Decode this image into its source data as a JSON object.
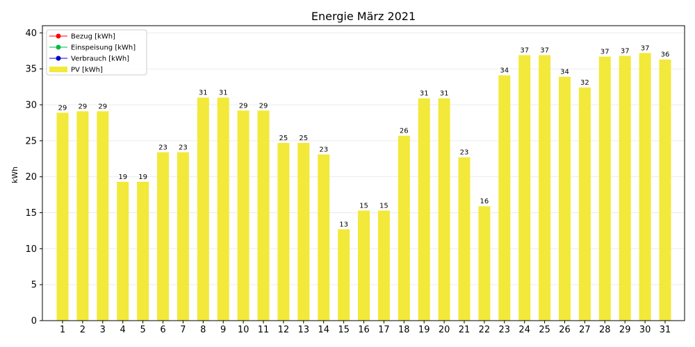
{
  "chart_data": {
    "type": "bar",
    "title": "Energie März 2021",
    "xlabel": "",
    "ylabel": "kWh",
    "categories": [
      "1",
      "2",
      "3",
      "4",
      "5",
      "6",
      "7",
      "8",
      "9",
      "10",
      "11",
      "12",
      "13",
      "14",
      "15",
      "16",
      "17",
      "18",
      "19",
      "20",
      "21",
      "22",
      "23",
      "24",
      "25",
      "26",
      "27",
      "28",
      "29",
      "30",
      "31"
    ],
    "series": [
      {
        "name": "PV [kWh]",
        "color": "#f2e93a",
        "values": [
          28.9,
          29.1,
          29.1,
          19.3,
          19.3,
          23.4,
          23.4,
          31.0,
          31.0,
          29.2,
          29.2,
          24.7,
          24.7,
          23.1,
          12.7,
          15.3,
          15.3,
          25.7,
          30.9,
          30.9,
          22.7,
          15.9,
          34.1,
          36.9,
          36.9,
          33.9,
          32.4,
          36.7,
          36.8,
          37.2,
          36.3
        ]
      }
    ],
    "data_labels": [
      "29",
      "29",
      "29",
      "19",
      "19",
      "23",
      "23",
      "31",
      "31",
      "29",
      "29",
      "25",
      "25",
      "23",
      "13",
      "15",
      "15",
      "26",
      "31",
      "31",
      "23",
      "16",
      "34",
      "37",
      "37",
      "34",
      "32",
      "37",
      "37",
      "37",
      "36"
    ],
    "ylim": [
      0,
      41
    ],
    "yticks": [
      0,
      5,
      10,
      15,
      20,
      25,
      30,
      35,
      40
    ],
    "grid": true,
    "legend_position": "top-left",
    "legend": [
      {
        "label": "Bezug [kWh]",
        "kind": "line-marker",
        "color": "#ff0000"
      },
      {
        "label": "Einspeisung [kWh]",
        "kind": "line-marker",
        "color": "#00bb44"
      },
      {
        "label": "Verbrauch [kWh]",
        "kind": "line-marker",
        "color": "#0000cc"
      },
      {
        "label": "PV [kWh]",
        "kind": "patch",
        "color": "#f2e93a"
      }
    ]
  }
}
